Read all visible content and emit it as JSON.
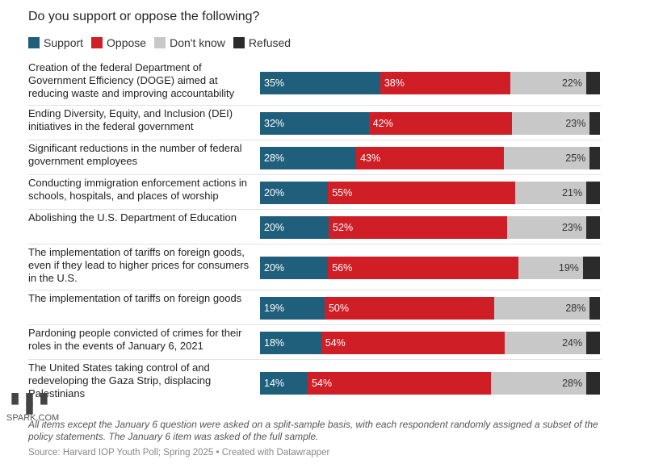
{
  "title": "Do you support or oppose the following?",
  "legend": [
    {
      "label": "Support",
      "color": "#1f5f7c"
    },
    {
      "label": "Oppose",
      "color": "#cf1e26"
    },
    {
      "label": "Don't know",
      "color": "#c8c8c8"
    },
    {
      "label": "Refused",
      "color": "#2b2b2b"
    }
  ],
  "chart_data": {
    "type": "bar",
    "orientation": "horizontal",
    "stacked": true,
    "title": "Do you support or oppose the following?",
    "categories": [
      "Creation of the federal Department of Government Efficiency (DOGE) aimed at reducing waste and improving accountability",
      "Ending Diversity, Equity, and Inclusion (DEI) initiatives in the federal government",
      "Significant reductions in the number of federal government employees",
      "Conducting immigration enforcement actions in schools, hospitals, and places of worship",
      "Abolishing the U.S. Department of Education",
      "The implementation of tariffs on foreign goods, even if they lead to higher prices for consumers in the U.S.",
      "The implementation of tariffs on foreign goods",
      "Pardoning people convicted of crimes for their roles in the events of January 6, 2021",
      "The United States taking control of and redeveloping the Gaza Strip, displacing Palestinians"
    ],
    "series": [
      {
        "name": "Support",
        "values": [
          35,
          32,
          28,
          20,
          20,
          20,
          19,
          18,
          14
        ]
      },
      {
        "name": "Oppose",
        "values": [
          38,
          42,
          43,
          55,
          52,
          56,
          50,
          54,
          54
        ]
      },
      {
        "name": "Don't know",
        "values": [
          22,
          23,
          25,
          21,
          23,
          19,
          28,
          24,
          28
        ]
      },
      {
        "name": "Refused",
        "values": [
          4,
          3,
          3,
          4,
          4,
          5,
          3,
          4,
          4
        ]
      }
    ],
    "data_labels": [
      [
        "35%",
        "38%",
        "22%"
      ],
      [
        "32%",
        "42%",
        "23%"
      ],
      [
        "28%",
        "43%",
        "25%"
      ],
      [
        "20%",
        "55%",
        "21%"
      ],
      [
        "20%",
        "52%",
        "23%"
      ],
      [
        "20%",
        "56%",
        "19%"
      ],
      [
        "19%",
        "50%",
        "28%"
      ],
      [
        "18%",
        "54%",
        "24%"
      ],
      [
        "14%",
        "54%",
        "28%"
      ]
    ],
    "legend_position": "top-left",
    "grid": false
  },
  "note": "All items except the January 6 question were asked on a split-sample basis, with each respondent randomly assigned a subset of the policy statements. The January 6 item was asked of the full sample.",
  "source": "Source: Harvard IOP Youth Poll; Spring 2025 • Created with Datawrapper",
  "watermark": {
    "top": "█ █ █ █",
    "bottom": "SPARK.COM"
  }
}
